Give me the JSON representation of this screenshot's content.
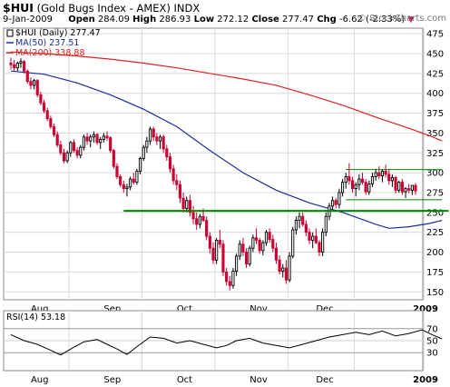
{
  "header": {
    "symbol": "$HUI",
    "name": "(Gold Bugs Index - AMEX)",
    "exchange": "INDX",
    "date": "9-Jan-2009",
    "open_label": "Open",
    "open": "284.09",
    "high_label": "High",
    "high": "286.93",
    "low_label": "Low",
    "low": "272.12",
    "close_label": "Close",
    "close": "277.47",
    "chg_label": "Chg",
    "chg": "-6.62 (-2.33%)",
    "chg_arrow": "▼",
    "credit": "© StockCharts.com"
  },
  "colors": {
    "up": "#000000",
    "down": "#cc0033",
    "ma50": "#1a2e99",
    "ma200": "#dd2222",
    "support": "#008800",
    "grid": "#d9d9d9",
    "rsi": "#000000",
    "rsi_fill": "#aaaaaa"
  },
  "chart_data": [
    {
      "type": "candlestick",
      "legend": {
        "price": "$HUI (Daily) 277.47",
        "ma50": "MA(50) 237.51",
        "ma200": "MA(200) 338.88"
      },
      "ylim": [
        140,
        482
      ],
      "yticks": [
        150,
        175,
        200,
        225,
        250,
        275,
        300,
        325,
        350,
        375,
        400,
        425,
        450,
        475
      ],
      "month_labels": [
        "Aug",
        "Sep",
        "Oct",
        "Nov",
        "Dec",
        "2009"
      ],
      "month_start_index": [
        18,
        40,
        62,
        84,
        104,
        125
      ],
      "ohlc": [
        [
          438,
          445,
          430,
          436
        ],
        [
          436,
          442,
          428,
          432
        ],
        [
          432,
          440,
          428,
          438
        ],
        [
          438,
          444,
          432,
          440
        ],
        [
          440,
          442,
          425,
          428
        ],
        [
          428,
          430,
          412,
          415
        ],
        [
          415,
          420,
          405,
          410
        ],
        [
          410,
          418,
          405,
          416
        ],
        [
          416,
          418,
          395,
          398
        ],
        [
          398,
          402,
          385,
          388
        ],
        [
          388,
          392,
          375,
          378
        ],
        [
          378,
          382,
          365,
          368
        ],
        [
          368,
          372,
          355,
          358
        ],
        [
          358,
          362,
          345,
          348
        ],
        [
          348,
          352,
          332,
          335
        ],
        [
          335,
          340,
          322,
          325
        ],
        [
          325,
          330,
          312,
          315
        ],
        [
          315,
          328,
          312,
          325
        ],
        [
          325,
          340,
          320,
          338
        ],
        [
          338,
          342,
          325,
          328
        ],
        [
          328,
          332,
          318,
          322
        ],
        [
          322,
          335,
          318,
          332
        ],
        [
          332,
          348,
          328,
          345
        ],
        [
          345,
          350,
          335,
          340
        ],
        [
          340,
          348,
          332,
          345
        ],
        [
          345,
          352,
          338,
          348
        ],
        [
          348,
          350,
          335,
          338
        ],
        [
          338,
          345,
          330,
          342
        ],
        [
          342,
          350,
          338,
          346
        ],
        [
          346,
          352,
          340,
          344
        ],
        [
          344,
          346,
          325,
          328
        ],
        [
          328,
          330,
          305,
          308
        ],
        [
          308,
          312,
          292,
          295
        ],
        [
          295,
          298,
          282,
          285
        ],
        [
          285,
          290,
          275,
          280
        ],
        [
          280,
          286,
          270,
          282
        ],
        [
          282,
          295,
          278,
          292
        ],
        [
          292,
          300,
          285,
          288
        ],
        [
          288,
          305,
          285,
          302
        ],
        [
          302,
          320,
          298,
          318
        ],
        [
          318,
          335,
          315,
          332
        ],
        [
          332,
          345,
          325,
          340
        ],
        [
          340,
          358,
          335,
          355
        ],
        [
          355,
          358,
          340,
          345
        ],
        [
          345,
          350,
          335,
          340
        ],
        [
          340,
          348,
          330,
          345
        ],
        [
          345,
          348,
          325,
          330
        ],
        [
          330,
          335,
          315,
          320
        ],
        [
          320,
          325,
          300,
          305
        ],
        [
          305,
          310,
          285,
          290
        ],
        [
          290,
          298,
          278,
          285
        ],
        [
          285,
          290,
          262,
          268
        ],
        [
          268,
          275,
          250,
          255
        ],
        [
          255,
          270,
          250,
          265
        ],
        [
          265,
          272,
          245,
          250
        ],
        [
          250,
          258,
          235,
          242
        ],
        [
          242,
          250,
          228,
          235
        ],
        [
          235,
          248,
          230,
          245
        ],
        [
          245,
          255,
          238,
          240
        ],
        [
          240,
          245,
          215,
          220
        ],
        [
          220,
          225,
          198,
          205
        ],
        [
          205,
          212,
          185,
          190
        ],
        [
          190,
          218,
          185,
          215
        ],
        [
          215,
          228,
          205,
          210
        ],
        [
          210,
          215,
          170,
          175
        ],
        [
          175,
          180,
          158,
          163
        ],
        [
          163,
          170,
          152,
          158
        ],
        [
          158,
          180,
          154,
          176
        ],
        [
          176,
          198,
          170,
          195
        ],
        [
          195,
          215,
          190,
          210
        ],
        [
          210,
          218,
          195,
          200
        ],
        [
          200,
          205,
          180,
          185
        ],
        [
          185,
          208,
          182,
          205
        ],
        [
          205,
          222,
          200,
          218
        ],
        [
          218,
          230,
          210,
          215
        ],
        [
          215,
          218,
          198,
          202
        ],
        [
          202,
          215,
          196,
          212
        ],
        [
          212,
          228,
          208,
          225
        ],
        [
          225,
          230,
          212,
          216
        ],
        [
          216,
          222,
          200,
          205
        ],
        [
          205,
          212,
          185,
          190
        ],
        [
          190,
          196,
          172,
          176
        ],
        [
          176,
          185,
          168,
          180
        ],
        [
          180,
          190,
          160,
          165
        ],
        [
          165,
          200,
          162,
          195
        ],
        [
          195,
          232,
          192,
          228
        ],
        [
          228,
          245,
          222,
          240
        ],
        [
          240,
          250,
          230,
          245
        ],
        [
          245,
          250,
          232,
          235
        ],
        [
          235,
          240,
          220,
          225
        ],
        [
          225,
          230,
          210,
          215
        ],
        [
          215,
          225,
          205,
          220
        ],
        [
          220,
          230,
          210,
          212
        ],
        [
          212,
          215,
          195,
          200
        ],
        [
          200,
          230,
          195,
          225
        ],
        [
          225,
          250,
          220,
          245
        ],
        [
          245,
          262,
          240,
          258
        ],
        [
          258,
          270,
          252,
          265
        ],
        [
          265,
          268,
          255,
          260
        ],
        [
          260,
          280,
          255,
          275
        ],
        [
          275,
          292,
          270,
          288
        ],
        [
          288,
          300,
          280,
          295
        ],
        [
          295,
          312,
          285,
          290
        ],
        [
          290,
          295,
          275,
          280
        ],
        [
          280,
          288,
          270,
          285
        ],
        [
          285,
          298,
          278,
          292
        ],
        [
          292,
          300,
          285,
          288
        ],
        [
          288,
          292,
          272,
          276
        ],
        [
          276,
          290,
          272,
          286
        ],
        [
          286,
          300,
          282,
          295
        ],
        [
          295,
          305,
          290,
          300
        ],
        [
          300,
          308,
          292,
          296
        ],
        [
          296,
          304,
          288,
          302
        ],
        [
          302,
          310,
          294,
          298
        ],
        [
          298,
          305,
          285,
          290
        ],
        [
          290,
          298,
          282,
          294
        ],
        [
          294,
          296,
          274,
          278
        ],
        [
          278,
          290,
          275,
          288
        ],
        [
          288,
          292,
          272,
          276
        ],
        [
          276,
          282,
          268,
          280
        ],
        [
          280,
          286,
          274,
          278
        ],
        [
          278,
          283,
          272,
          284
        ],
        [
          284,
          287,
          272,
          277
        ]
      ],
      "ma50": [
        [
          0,
          428
        ],
        [
          10,
          424
        ],
        [
          20,
          413
        ],
        [
          30,
          398
        ],
        [
          40,
          380
        ],
        [
          50,
          358
        ],
        [
          60,
          328
        ],
        [
          70,
          300
        ],
        [
          80,
          278
        ],
        [
          90,
          262
        ],
        [
          100,
          250
        ],
        [
          110,
          235
        ],
        [
          114,
          230
        ],
        [
          120,
          232
        ],
        [
          126,
          236
        ],
        [
          130,
          240
        ]
      ],
      "ma200": [
        [
          0,
          452
        ],
        [
          10,
          450
        ],
        [
          20,
          447
        ],
        [
          30,
          443
        ],
        [
          40,
          438
        ],
        [
          50,
          432
        ],
        [
          60,
          425
        ],
        [
          70,
          418
        ],
        [
          80,
          410
        ],
        [
          90,
          398
        ],
        [
          100,
          385
        ],
        [
          110,
          370
        ],
        [
          120,
          356
        ],
        [
          126,
          347
        ],
        [
          130,
          340
        ]
      ],
      "lines": [
        {
          "name": "support-line",
          "x": [
            34,
            132
          ],
          "y": [
            252,
            252
          ],
          "width": 2
        },
        {
          "name": "channel-top",
          "x": [
            101,
            130
          ],
          "y": [
            304,
            304
          ],
          "width": 1
        },
        {
          "name": "channel-bottom",
          "x": [
            101,
            130
          ],
          "y": [
            266,
            266
          ],
          "width": 1
        }
      ]
    },
    {
      "type": "line",
      "legend": "RSI(14) 53.18",
      "ylim": [
        0,
        100
      ],
      "yticks": [
        30,
        50,
        70
      ],
      "month_labels": [
        "Aug",
        "Sep",
        "Oct",
        "Nov",
        "Dec",
        "2009"
      ],
      "rsi": [
        [
          0,
          60
        ],
        [
          4,
          50
        ],
        [
          8,
          44
        ],
        [
          12,
          34
        ],
        [
          15,
          26
        ],
        [
          18,
          36
        ],
        [
          22,
          48
        ],
        [
          26,
          52
        ],
        [
          29,
          44
        ],
        [
          32,
          36
        ],
        [
          35,
          27
        ],
        [
          38,
          40
        ],
        [
          42,
          56
        ],
        [
          46,
          54
        ],
        [
          50,
          46
        ],
        [
          54,
          50
        ],
        [
          58,
          44
        ],
        [
          62,
          38
        ],
        [
          65,
          42
        ],
        [
          68,
          50
        ],
        [
          72,
          54
        ],
        [
          76,
          46
        ],
        [
          80,
          42
        ],
        [
          84,
          38
        ],
        [
          88,
          44
        ],
        [
          92,
          50
        ],
        [
          96,
          56
        ],
        [
          100,
          60
        ],
        [
          104,
          64
        ],
        [
          108,
          60
        ],
        [
          112,
          66
        ],
        [
          116,
          58
        ],
        [
          120,
          62
        ],
        [
          124,
          68
        ],
        [
          127,
          60
        ],
        [
          130,
          53
        ]
      ]
    }
  ]
}
